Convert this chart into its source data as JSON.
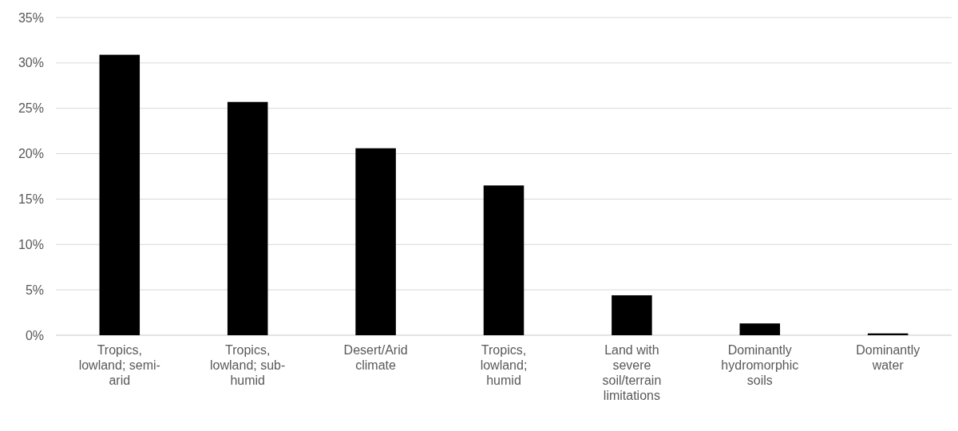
{
  "chart_data": {
    "type": "bar",
    "categories": [
      "Tropics, lowland; semi-arid",
      "Tropics, lowland; sub-humid",
      "Desert/Arid climate",
      "Tropics, lowland; humid",
      "Land with severe soil/terrain limitations",
      "Dominantly hydromorphic soils",
      "Dominantly water"
    ],
    "values": [
      30.9,
      25.7,
      20.6,
      16.5,
      4.4,
      1.3,
      0.2
    ],
    "color": "#000000",
    "ylim": [
      0,
      35
    ],
    "yticks": [
      {
        "value": 0,
        "label": "0%"
      },
      {
        "value": 5,
        "label": "5%"
      },
      {
        "value": 10,
        "label": "10%"
      },
      {
        "value": 15,
        "label": "15%"
      },
      {
        "value": 20,
        "label": "20%"
      },
      {
        "value": 25,
        "label": "25%"
      },
      {
        "value": 30,
        "label": "30%"
      },
      {
        "value": 35,
        "label": "35%"
      }
    ],
    "grid": "y"
  }
}
